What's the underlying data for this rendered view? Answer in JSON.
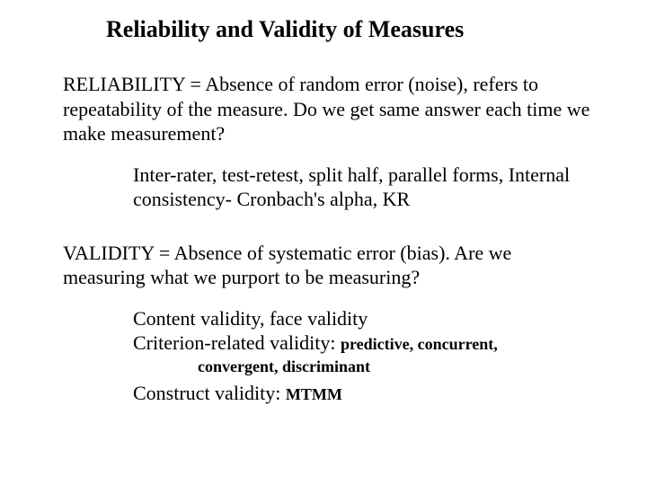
{
  "title": "Reliability and Validity of Measures",
  "reliability": {
    "para": "RELIABILITY = Absence of random error (noise), refers to repeatability of the measure. Do we get same answer each time we make measurement?",
    "methods": "Inter-rater, test-retest, split half, parallel forms, Internal consistency-  Cronbach's alpha, KR"
  },
  "validity": {
    "para": "VALIDITY = Absence of systematic error (bias). Are we measuring what we purport to be measuring?",
    "content_line": "Content validity, face validity",
    "criterion_prefix": "Criterion-related validity: ",
    "criterion_small": "predictive, concurrent,",
    "criterion_sub": "convergent, discriminant",
    "construct_prefix": "Construct validity: ",
    "construct_small": "MTMM"
  },
  "style": {
    "background_color": "#ffffff",
    "text_color": "#000000",
    "title_fontsize": 26,
    "body_fontsize": 22,
    "small_bold_fontsize": 18,
    "font_family": "Times New Roman"
  }
}
